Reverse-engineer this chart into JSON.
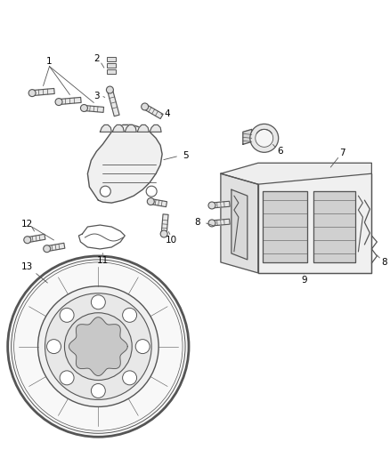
{
  "background_color": "#ffffff",
  "line_color": "#555555",
  "label_color": "#000000",
  "fig_width": 4.38,
  "fig_height": 5.33,
  "dpi": 100,
  "label_fontsize": 7.5,
  "caliper_color": "#f0f0f0",
  "rotor_color": "#f5f5f5"
}
